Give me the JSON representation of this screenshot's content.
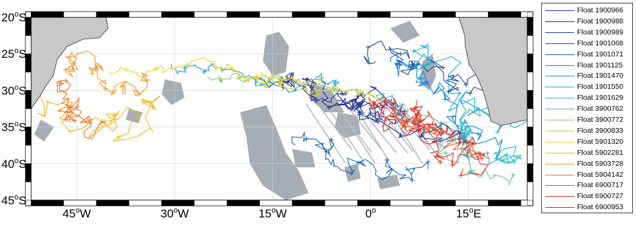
{
  "map": {
    "lat_ticks": [
      {
        "lat": -20,
        "label": "20",
        "sup": "o",
        "hemi": "S"
      },
      {
        "lat": -25,
        "label": "25",
        "sup": "o",
        "hemi": "S"
      },
      {
        "lat": -30,
        "label": "30",
        "sup": "o",
        "hemi": "S"
      },
      {
        "lat": -35,
        "label": "35",
        "sup": "o",
        "hemi": "S"
      },
      {
        "lat": -40,
        "label": "40",
        "sup": "o",
        "hemi": "S"
      },
      {
        "lat": -45,
        "label": "45",
        "sup": "o",
        "hemi": "S"
      }
    ],
    "lon_ticks": [
      {
        "lon": -45,
        "label": "45",
        "sup": "o",
        "hemi": "W"
      },
      {
        "lon": -30,
        "label": "30",
        "sup": "o",
        "hemi": "W"
      },
      {
        "lon": -15,
        "label": "15",
        "sup": "o",
        "hemi": "W"
      },
      {
        "lon": 0,
        "label": "0",
        "sup": "o",
        "hemi": ""
      },
      {
        "lon": 15,
        "label": "15",
        "sup": "o",
        "hemi": "E"
      }
    ],
    "lon_range": [
      -52,
      24
    ],
    "lat_range": [
      -45,
      -20
    ],
    "grid": true,
    "land_color": "#c8c8c8",
    "shallow_color": "#a7adb4",
    "ocean_color": "#ffffff"
  },
  "legend": {
    "placement": "right",
    "items": [
      {
        "label": "Float 1900966",
        "color": "#2f2f9f"
      },
      {
        "label": "Float 1900988",
        "color": "#2b2b8a"
      },
      {
        "label": "Float 1900989",
        "color": "#1f3c8c"
      },
      {
        "label": "Float 1901068",
        "color": "#1a4c94"
      },
      {
        "label": "Float 1901071",
        "color": "#1867b2"
      },
      {
        "label": "Float 1901125",
        "color": "#0f87d6"
      },
      {
        "label": "Float 1901470",
        "color": "#149bd8"
      },
      {
        "label": "Float 1901550",
        "color": "#1ab0d0"
      },
      {
        "label": "Float 1901629",
        "color": "#2ebcc4"
      },
      {
        "label": "Float 3900762",
        "color": "#5cc0a8"
      },
      {
        "label": "Float 3900772",
        "color": "#8cc870"
      },
      {
        "label": "Float 3900833",
        "color": "#c2d03a"
      },
      {
        "label": "Float 5901320",
        "color": "#efd422"
      },
      {
        "label": "Float 5902281",
        "color": "#f0b422"
      },
      {
        "label": "Float 5903728",
        "color": "#ee9526"
      },
      {
        "label": "Float 5904142",
        "color": "#ec7628"
      },
      {
        "label": "Float 6900717",
        "color": "#e8562a"
      },
      {
        "label": "Float 6900727",
        "color": "#e4382b"
      },
      {
        "label": "Float 6900953",
        "color": "#e0242c"
      }
    ]
  }
}
